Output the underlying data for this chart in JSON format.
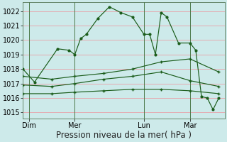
{
  "background_color": "#cdeaea",
  "grid_color": "#e8a0a8",
  "line_color": "#1a5c1a",
  "ylim": [
    1014.6,
    1022.6
  ],
  "yticks": [
    1015,
    1016,
    1017,
    1018,
    1019,
    1020,
    1021,
    1022
  ],
  "xlabel": "Pression niveau de la mer( hPa )",
  "xlabel_fontsize": 8.5,
  "tick_fontsize": 7,
  "day_labels": [
    "Dim",
    "Mer",
    "Lun",
    "Mar"
  ],
  "day_positions": [
    1,
    9,
    21,
    29
  ],
  "xlim": [
    0,
    35
  ],
  "series1_x": [
    0,
    2,
    6,
    8,
    9,
    10,
    11,
    13,
    15,
    17,
    19,
    21,
    22,
    23,
    24,
    25,
    27,
    29,
    30,
    31,
    32,
    33,
    34
  ],
  "series1_y": [
    1018.0,
    1017.1,
    1019.4,
    1019.3,
    1019.0,
    1020.1,
    1020.4,
    1021.5,
    1022.3,
    1021.9,
    1021.6,
    1020.4,
    1020.4,
    1019.0,
    1021.9,
    1021.6,
    1019.8,
    1019.8,
    1019.3,
    1016.1,
    1016.0,
    1015.2,
    1016.0
  ],
  "series2_x": [
    0,
    5,
    9,
    14,
    19,
    24,
    29,
    34
  ],
  "series2_y": [
    1017.5,
    1017.3,
    1017.5,
    1017.7,
    1018.0,
    1018.5,
    1018.7,
    1017.8
  ],
  "series3_x": [
    0,
    5,
    9,
    14,
    19,
    24,
    29,
    34
  ],
  "series3_y": [
    1016.9,
    1016.8,
    1017.0,
    1017.3,
    1017.5,
    1017.8,
    1017.2,
    1016.8
  ],
  "series4_x": [
    0,
    5,
    9,
    14,
    19,
    24,
    29,
    34
  ],
  "series4_y": [
    1016.3,
    1016.3,
    1016.4,
    1016.5,
    1016.6,
    1016.6,
    1016.5,
    1016.3
  ]
}
